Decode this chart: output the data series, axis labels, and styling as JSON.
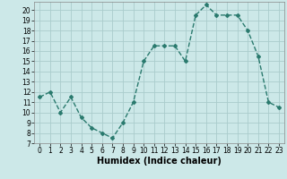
{
  "x": [
    0,
    1,
    2,
    3,
    4,
    5,
    6,
    7,
    8,
    9,
    10,
    11,
    12,
    13,
    14,
    15,
    16,
    17,
    18,
    19,
    20,
    21,
    22,
    23
  ],
  "y": [
    11.5,
    12.0,
    10.0,
    11.5,
    9.5,
    8.5,
    8.0,
    7.5,
    9.0,
    11.0,
    15.0,
    16.5,
    16.5,
    16.5,
    15.0,
    19.5,
    20.5,
    19.5,
    19.5,
    19.5,
    18.0,
    15.5,
    11.0,
    10.5
  ],
  "line_color": "#2a7a6e",
  "marker": "D",
  "marker_size": 2.0,
  "xlabel": "Humidex (Indice chaleur)",
  "xlim": [
    -0.5,
    23.5
  ],
  "ylim": [
    7,
    20.8
  ],
  "yticks": [
    7,
    8,
    9,
    10,
    11,
    12,
    13,
    14,
    15,
    16,
    17,
    18,
    19,
    20
  ],
  "xticks": [
    0,
    1,
    2,
    3,
    4,
    5,
    6,
    7,
    8,
    9,
    10,
    11,
    12,
    13,
    14,
    15,
    16,
    17,
    18,
    19,
    20,
    21,
    22,
    23
  ],
  "grid_color": "#aacccc",
  "bg_color": "#cce8e8",
  "xlabel_fontsize": 7,
  "tick_fontsize": 5.5,
  "line_width": 1.0,
  "xlabel_weight": "bold"
}
